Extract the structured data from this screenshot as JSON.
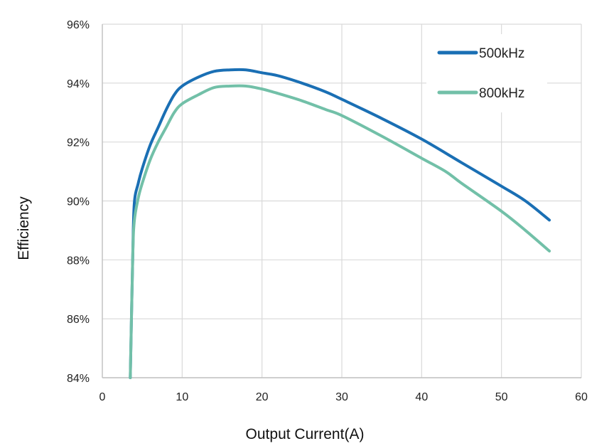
{
  "chart_data": {
    "type": "line",
    "title": "",
    "xlabel": "Output Current(A)",
    "ylabel": "Efficiency",
    "xlim": [
      0,
      60
    ],
    "ylim": [
      84,
      96
    ],
    "x_ticks": [
      0,
      10,
      20,
      30,
      40,
      50,
      60
    ],
    "y_ticks": [
      84,
      86,
      88,
      90,
      92,
      94,
      96
    ],
    "y_tick_labels": [
      "84%",
      "86%",
      "88%",
      "90%",
      "92%",
      "94%",
      "96%"
    ],
    "grid": true,
    "legend_position": "top-right",
    "series": [
      {
        "name": "500kHz",
        "color": "#1a6fb4",
        "x": [
          3.5,
          3.8,
          4,
          4.5,
          5,
          6,
          7,
          8,
          9,
          10,
          12,
          14,
          16,
          18,
          20,
          22,
          25,
          28,
          30,
          35,
          40,
          45,
          50,
          53,
          56
        ],
        "y": [
          84.0,
          88.0,
          89.9,
          90.6,
          91.1,
          91.9,
          92.5,
          93.1,
          93.6,
          93.9,
          94.2,
          94.4,
          94.45,
          94.45,
          94.35,
          94.25,
          94.0,
          93.7,
          93.45,
          92.8,
          92.1,
          91.3,
          90.5,
          90.0,
          89.35
        ]
      },
      {
        "name": "800kHz",
        "color": "#72c0a8",
        "x": [
          3.5,
          3.8,
          4,
          4.5,
          5,
          6,
          7,
          8,
          9,
          10,
          12,
          14,
          16,
          18,
          20,
          22,
          25,
          28,
          30,
          35,
          40,
          43,
          45,
          50,
          53,
          56
        ],
        "y": [
          84.0,
          88.0,
          89.3,
          90.1,
          90.6,
          91.4,
          92.0,
          92.5,
          93.0,
          93.3,
          93.6,
          93.85,
          93.9,
          93.9,
          93.8,
          93.65,
          93.4,
          93.1,
          92.9,
          92.2,
          91.45,
          91.0,
          90.6,
          89.65,
          89.0,
          88.3
        ]
      }
    ]
  }
}
